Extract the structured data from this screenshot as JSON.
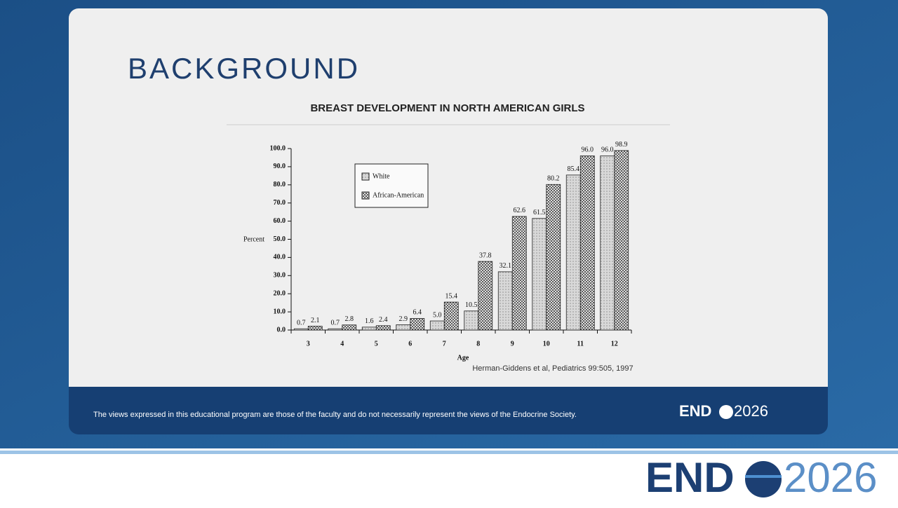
{
  "heading": "BACKGROUND",
  "chart_data": {
    "type": "bar",
    "title": "BREAST DEVELOPMENT IN NORTH AMERICAN GIRLS",
    "xlabel": "Age",
    "ylabel": "Percent",
    "categories": [
      "3",
      "4",
      "5",
      "6",
      "7",
      "8",
      "9",
      "10",
      "11",
      "12"
    ],
    "series": [
      {
        "name": "White",
        "color": "#d8d8d8",
        "values": [
          0.7,
          0.7,
          1.6,
          2.9,
          5.0,
          10.5,
          32.1,
          61.5,
          85.4,
          96.0
        ],
        "value_labels": [
          "0.7",
          "0.7",
          "1.6",
          "2.9",
          "5.0",
          "10.5",
          "32.1",
          "61.5",
          "85.4",
          "96.0"
        ]
      },
      {
        "name": "African-American",
        "color": "#3a3a3a",
        "values": [
          2.1,
          2.8,
          2.4,
          6.4,
          15.4,
          37.8,
          62.6,
          80.2,
          96.0,
          98.9
        ],
        "value_labels": [
          "2.1",
          "2.8",
          "2.4",
          "6.4",
          "15.4",
          "37.8",
          "62.6",
          "80.2",
          "96.0",
          "98.9"
        ]
      }
    ],
    "ylim": [
      0,
      100
    ],
    "yticks": [
      {
        "value": 0,
        "label": "0.0"
      },
      {
        "value": 10,
        "label": "10.0"
      },
      {
        "value": 20,
        "label": "20.0"
      },
      {
        "value": 30,
        "label": "30.0"
      },
      {
        "value": 40,
        "label": "40.0"
      },
      {
        "value": 50,
        "label": "50.0"
      },
      {
        "value": 60,
        "label": "60.0"
      },
      {
        "value": 70,
        "label": "70.0"
      },
      {
        "value": 80,
        "label": "80.0"
      },
      {
        "value": 90,
        "label": "90.0"
      },
      {
        "value": 100,
        "label": "100.0"
      }
    ],
    "grid": false,
    "legend": "upper left",
    "source": "Herman-Giddens et al, Pediatrics 99:505, 1997"
  },
  "footer": {
    "disclaimer": "The views expressed in this educational program are those of the faculty and do not necessarily represent the views of the Endocrine Society."
  },
  "logo": {
    "left": "END",
    "right": "2026"
  }
}
